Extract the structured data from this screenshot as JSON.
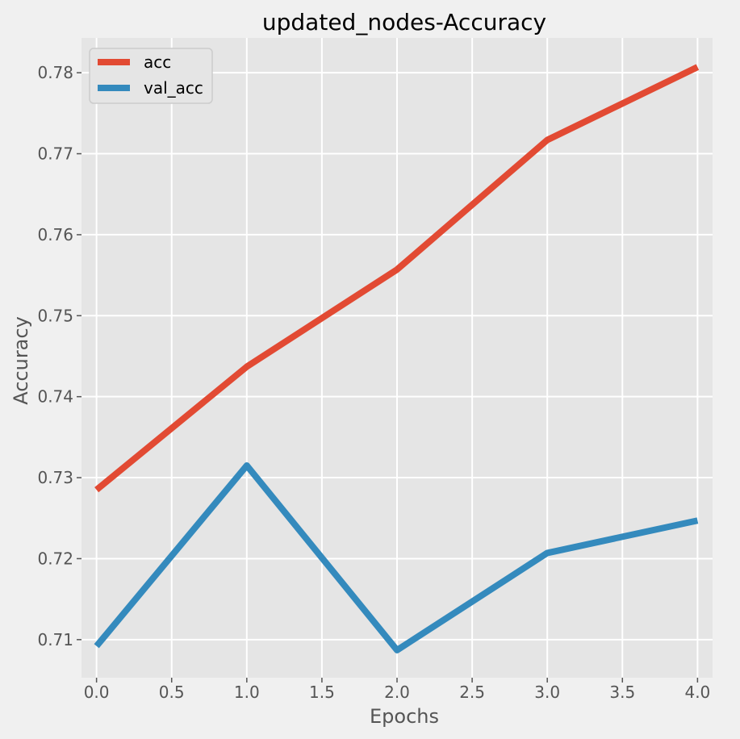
{
  "chart_data": {
    "type": "line",
    "title": "updated_nodes-Accuracy",
    "xlabel": "Epochs",
    "ylabel": "Accuracy",
    "x": [
      0,
      1,
      2,
      3,
      4
    ],
    "xlim": [
      -0.1,
      4.1
    ],
    "ylim": [
      0.7053,
      0.7843
    ],
    "xticks": [
      0.0,
      0.5,
      1.0,
      1.5,
      2.0,
      2.5,
      3.0,
      3.5,
      4.0
    ],
    "xtick_labels": [
      "0.0",
      "0.5",
      "1.0",
      "1.5",
      "2.0",
      "2.5",
      "3.0",
      "3.5",
      "4.0"
    ],
    "yticks": [
      0.71,
      0.72,
      0.73,
      0.74,
      0.75,
      0.76,
      0.77,
      0.78
    ],
    "ytick_labels": [
      "0.71",
      "0.72",
      "0.73",
      "0.74",
      "0.75",
      "0.76",
      "0.77",
      "0.78"
    ],
    "grid": true,
    "legend_position": "top-left",
    "series": [
      {
        "name": "acc",
        "color": "#E24A33",
        "values": [
          0.7285,
          0.7437,
          0.7557,
          0.7717,
          0.7807
        ]
      },
      {
        "name": "val_acc",
        "color": "#348ABD",
        "values": [
          0.7092,
          0.7315,
          0.7087,
          0.7207,
          0.7247
        ]
      }
    ]
  }
}
